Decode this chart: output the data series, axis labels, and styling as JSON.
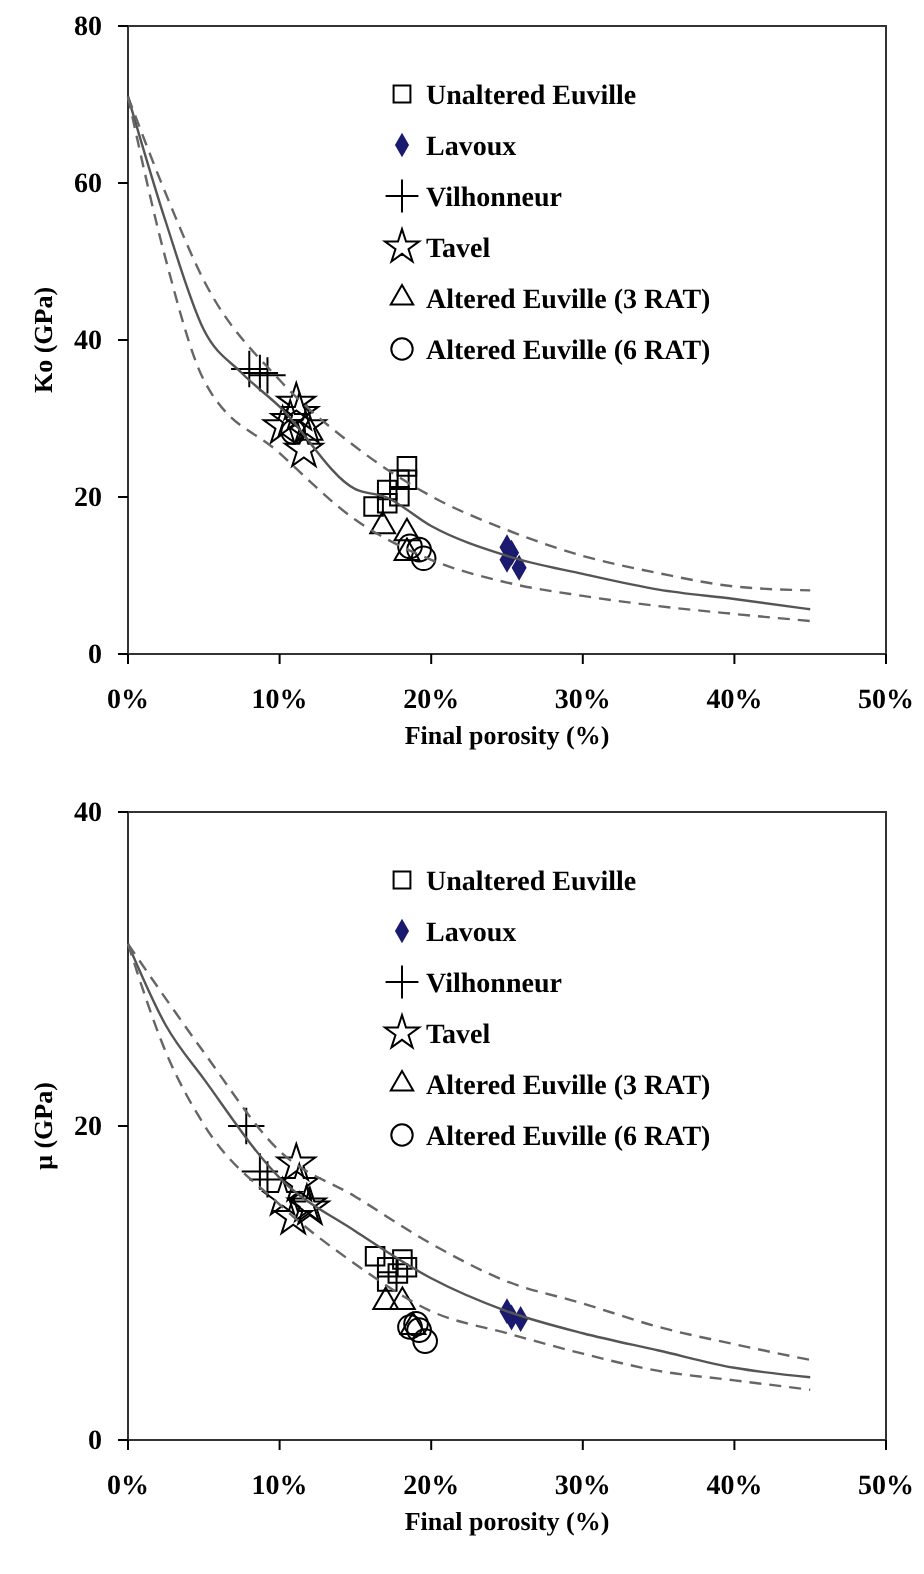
{
  "chart_data": [
    {
      "type": "scatter",
      "xlabel": "Final porosity (%)",
      "ylabel": "Ko (GPa)",
      "xlim": [
        0,
        50
      ],
      "ylim": [
        0,
        80
      ],
      "xticks": [
        {
          "value": 0,
          "label": "0%"
        },
        {
          "value": 10,
          "label": "10%"
        },
        {
          "value": 20,
          "label": "20%"
        },
        {
          "value": 30,
          "label": "30%"
        },
        {
          "value": 40,
          "label": "40%"
        },
        {
          "value": 50,
          "label": "50%"
        }
      ],
      "yticks": [
        0,
        20,
        40,
        60,
        80
      ],
      "grid": false,
      "legend": "top right",
      "series": [
        {
          "name": "Unaltered Euville",
          "marker": "square",
          "color": "#000000",
          "x": [
            16.2,
            17.1,
            17.1,
            17.9,
            18.4,
            17.9,
            18.4
          ],
          "values": [
            18.8,
            19.2,
            20.9,
            22.2,
            23.9,
            20.1,
            22.2
          ]
        },
        {
          "name": "Lavoux",
          "marker": "diamond",
          "color": "#1a1a6e",
          "x": [
            25.0,
            25.0,
            25.8,
            25.3
          ],
          "values": [
            13.6,
            12.0,
            11.0,
            12.9
          ]
        },
        {
          "name": "Vilhonneur",
          "marker": "cross",
          "color": "#000000",
          "x": [
            8.0,
            8.7,
            9.2
          ],
          "values": [
            36.3,
            35.8,
            35.5
          ]
        },
        {
          "name": "Tavel",
          "marker": "star",
          "color": "#000000",
          "x": [
            11.1,
            10.2,
            11.3,
            11.8,
            11.6,
            10.7
          ],
          "values": [
            32.0,
            29.0,
            30.7,
            29.0,
            26.0,
            29.8
          ]
        },
        {
          "name": "Altered Euville (3 RAT)",
          "marker": "triangle",
          "color": "#000000",
          "x": [
            12.0,
            16.8,
            18.4,
            18.4
          ],
          "values": [
            28.2,
            16.3,
            15.4,
            12.9
          ]
        },
        {
          "name": "Altered Euville (6 RAT)",
          "marker": "circle",
          "color": "#000000",
          "x": [
            10.9,
            18.6,
            19.2,
            19.5
          ],
          "values": [
            28.3,
            13.7,
            13.3,
            12.2
          ]
        },
        {
          "type": "line",
          "line_style": "solid",
          "marker": "none",
          "color": "#555555",
          "x": [
            0,
            2.5,
            5,
            7.5,
            10,
            15,
            17,
            20,
            25,
            30,
            35,
            40,
            45
          ],
          "values": [
            71,
            55,
            41.3,
            35.8,
            31.5,
            21,
            20,
            16.3,
            12.5,
            10.2,
            8.2,
            7.0,
            5.7
          ]
        },
        {
          "type": "line",
          "line_style": "dashed",
          "marker": "none",
          "color": "#666666",
          "x": [
            0,
            2.5,
            5,
            10,
            15,
            20,
            25,
            30,
            35,
            40,
            45
          ],
          "values": [
            71,
            58.6,
            47.6,
            34.9,
            26.4,
            20.1,
            15.8,
            12.5,
            10.3,
            8.6,
            8.1
          ]
        },
        {
          "type": "line",
          "line_style": "dashed",
          "marker": "none",
          "color": "#666666",
          "x": [
            0,
            2.5,
            5,
            10,
            15,
            20,
            25,
            30,
            35,
            40,
            45
          ],
          "values": [
            71,
            50.2,
            34.9,
            25.6,
            17.1,
            12.0,
            9.1,
            7.4,
            6.1,
            5.1,
            4.2
          ]
        }
      ]
    },
    {
      "type": "scatter",
      "xlabel": "Final porosity (%)",
      "ylabel": "μ (GPa)",
      "xlim": [
        0,
        50
      ],
      "ylim": [
        0,
        40
      ],
      "xticks": [
        {
          "value": 0,
          "label": "0%"
        },
        {
          "value": 10,
          "label": "10%"
        },
        {
          "value": 20,
          "label": "20%"
        },
        {
          "value": 30,
          "label": "30%"
        },
        {
          "value": 40,
          "label": "40%"
        },
        {
          "value": 50,
          "label": "50%"
        }
      ],
      "yticks": [
        0,
        20,
        40
      ],
      "grid": false,
      "legend": "top right",
      "series": [
        {
          "name": "Unaltered Euville",
          "marker": "square",
          "color": "#000000",
          "x": [
            16.3,
            17.1,
            17.1,
            18.1,
            18.4,
            17.8
          ],
          "values": [
            11.7,
            11.0,
            10.1,
            11.5,
            11.0,
            10.6
          ]
        },
        {
          "name": "Lavoux",
          "marker": "diamond",
          "color": "#1a1a6e",
          "x": [
            25.0,
            25.3,
            25.9
          ],
          "values": [
            8.2,
            7.8,
            7.7
          ]
        },
        {
          "name": "Vilhonneur",
          "marker": "cross",
          "color": "#000000",
          "x": [
            7.8,
            8.7,
            9.2
          ],
          "values": [
            20.0,
            17.1,
            16.6
          ]
        },
        {
          "name": "Tavel",
          "marker": "star",
          "color": "#000000",
          "x": [
            11.1,
            10.2,
            10.9,
            11.8,
            11.3,
            12.0
          ],
          "values": [
            17.6,
            15.4,
            14.2,
            15.0,
            16.3,
            14.8
          ]
        },
        {
          "name": "Altered Euville (3 RAT)",
          "marker": "triangle",
          "color": "#000000",
          "x": [
            17.0,
            18.1,
            18.8
          ],
          "values": [
            8.8,
            8.8,
            7.2
          ]
        },
        {
          "name": "Altered Euville (6 RAT)",
          "marker": "circle",
          "color": "#000000",
          "x": [
            18.6,
            19.2,
            19.6,
            19.0
          ],
          "values": [
            7.2,
            7.0,
            6.3,
            7.4
          ]
        },
        {
          "type": "line",
          "line_style": "solid",
          "marker": "none",
          "color": "#555555",
          "x": [
            0,
            2.5,
            5,
            10,
            15,
            20,
            25,
            30,
            35,
            40,
            45
          ],
          "values": [
            31.6,
            26.4,
            23.0,
            16.7,
            13.3,
            10.3,
            8.2,
            6.8,
            5.7,
            4.6,
            4.0
          ]
        },
        {
          "type": "line",
          "line_style": "dashed",
          "marker": "none",
          "color": "#666666",
          "x": [
            0,
            2.5,
            5,
            10,
            15,
            20,
            25,
            30,
            35,
            40,
            45
          ],
          "values": [
            31.6,
            28.1,
            24.7,
            18.4,
            15.5,
            12.5,
            10.1,
            8.7,
            7.2,
            6.1,
            5.1
          ]
        },
        {
          "type": "line",
          "line_style": "dashed",
          "marker": "none",
          "color": "#666666",
          "x": [
            0,
            2.5,
            5,
            10,
            15,
            20,
            25,
            30,
            35,
            40,
            45
          ],
          "values": [
            31.6,
            24.7,
            20.1,
            15.0,
            11.2,
            8.2,
            6.8,
            5.5,
            4.4,
            3.8,
            3.2
          ]
        }
      ]
    }
  ]
}
